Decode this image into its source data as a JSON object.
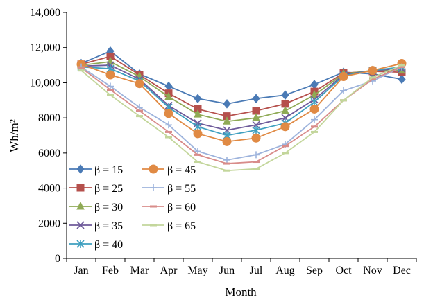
{
  "chart_data": {
    "type": "line",
    "title": "",
    "xlabel": "Month",
    "ylabel": "Wh/m²",
    "ylim": [
      0,
      14000
    ],
    "yticks": [
      0,
      2000,
      4000,
      6000,
      8000,
      10000,
      12000,
      14000
    ],
    "ytick_labels": [
      "0",
      "2000",
      "4000",
      "6000",
      "8000",
      "10,000",
      "12,000",
      "14,000"
    ],
    "categories": [
      "Jan",
      "Feb",
      "Mar",
      "Apr",
      "May",
      "Jun",
      "Jul",
      "Aug",
      "Sep",
      "Oct",
      "Nov",
      "Dec"
    ],
    "grid": false,
    "legend_position": "bottom-left",
    "series": [
      {
        "name": "β = 15",
        "color": "#4a7ab5",
        "marker": "diamond",
        "values": [
          11100,
          11800,
          10500,
          9800,
          9100,
          8800,
          9100,
          9300,
          9900,
          10600,
          10500,
          10200
        ]
      },
      {
        "name": "β = 25",
        "color": "#b5504c",
        "marker": "square",
        "values": [
          11050,
          11500,
          10450,
          9400,
          8500,
          8100,
          8400,
          8800,
          9500,
          10550,
          10650,
          10600
        ]
      },
      {
        "name": "β = 30",
        "color": "#8faa55",
        "marker": "triangle",
        "values": [
          11000,
          11200,
          10350,
          9200,
          8200,
          7800,
          8000,
          8400,
          9300,
          10500,
          10700,
          10700
        ]
      },
      {
        "name": "β = 35",
        "color": "#6e5a9a",
        "marker": "x",
        "values": [
          10950,
          11000,
          10200,
          8700,
          7700,
          7300,
          7600,
          8000,
          9050,
          10450,
          10700,
          10800
        ]
      },
      {
        "name": "β = 40",
        "color": "#3e9fbf",
        "marker": "star",
        "values": [
          10900,
          10800,
          10100,
          8600,
          7500,
          7000,
          7300,
          7700,
          8900,
          10400,
          10700,
          10900
        ]
      },
      {
        "name": "β = 45",
        "color": "#e08a44",
        "marker": "circle",
        "values": [
          11050,
          10450,
          9950,
          8250,
          7100,
          6650,
          6850,
          7500,
          8500,
          10350,
          10700,
          11100
        ]
      },
      {
        "name": "β = 55",
        "color": "#9db3dc",
        "marker": "plus",
        "values": [
          10900,
          9800,
          8600,
          7600,
          6100,
          5600,
          5900,
          6500,
          7900,
          9550,
          10100,
          10900
        ]
      },
      {
        "name": "β = 60",
        "color": "#d88c8a",
        "marker": "dash",
        "values": [
          10850,
          9600,
          8400,
          7200,
          5900,
          5400,
          5500,
          6400,
          7500,
          9000,
          10200,
          10900
        ]
      },
      {
        "name": "β = 65",
        "color": "#c3d69b",
        "marker": "dash",
        "values": [
          10700,
          9300,
          8100,
          6900,
          5500,
          5000,
          5100,
          6000,
          7200,
          9000,
          10300,
          11000
        ]
      }
    ]
  }
}
